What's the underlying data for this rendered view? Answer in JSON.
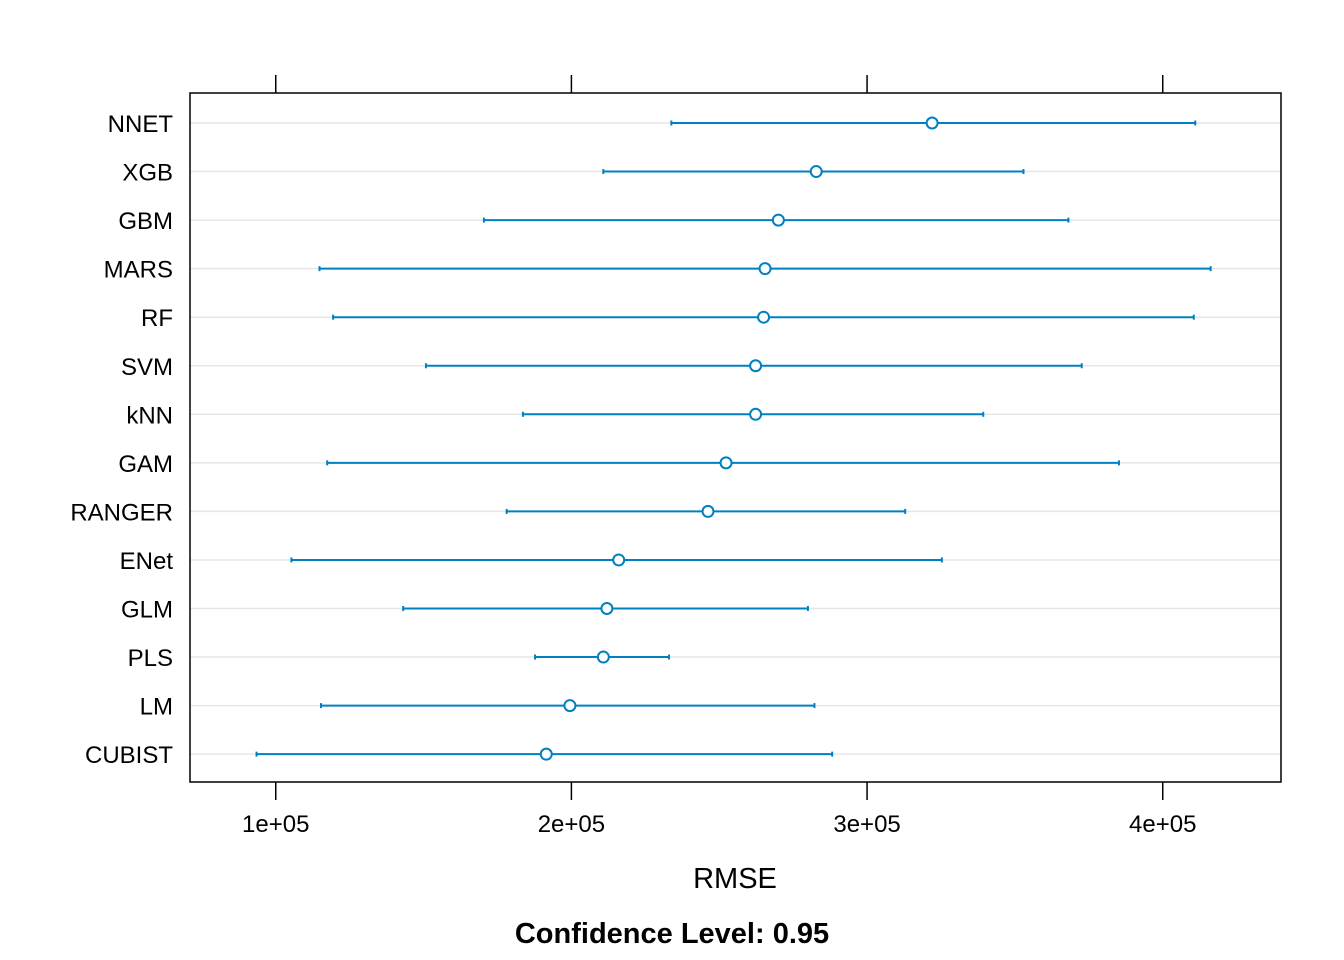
{
  "chart_data": {
    "type": "dotplot-errorbar",
    "title": "",
    "xlabel": "RMSE",
    "ylabel": "",
    "caption": "Confidence Level: 0.95",
    "xlim": [
      71000,
      440000
    ],
    "xticks": [
      100000,
      200000,
      300000,
      400000
    ],
    "xtick_labels": [
      "1e+05",
      "2e+05",
      "3e+05",
      "4e+05"
    ],
    "grid": "horizontal",
    "legend": "none",
    "color": "#0080c0",
    "gridline_color": "#e6e6e6",
    "categories": [
      "NNET",
      "XGB",
      "GBM",
      "MARS",
      "RF",
      "SVM",
      "kNN",
      "GAM",
      "RANGER",
      "ENet",
      "GLM",
      "PLS",
      "LM",
      "CUBIST"
    ],
    "estimates": [
      322000,
      282800,
      270000,
      265500,
      265000,
      262300,
      262300,
      252300,
      246200,
      216000,
      212000,
      210800,
      199500,
      191500
    ],
    "lower": [
      233800,
      210800,
      170400,
      114800,
      119400,
      150800,
      183600,
      117400,
      178100,
      105300,
      143100,
      187700,
      115300,
      93500
    ],
    "upper": [
      411000,
      352900,
      368100,
      416200,
      410500,
      372600,
      339300,
      385200,
      312900,
      325300,
      280000,
      233000,
      282200,
      288200
    ]
  }
}
